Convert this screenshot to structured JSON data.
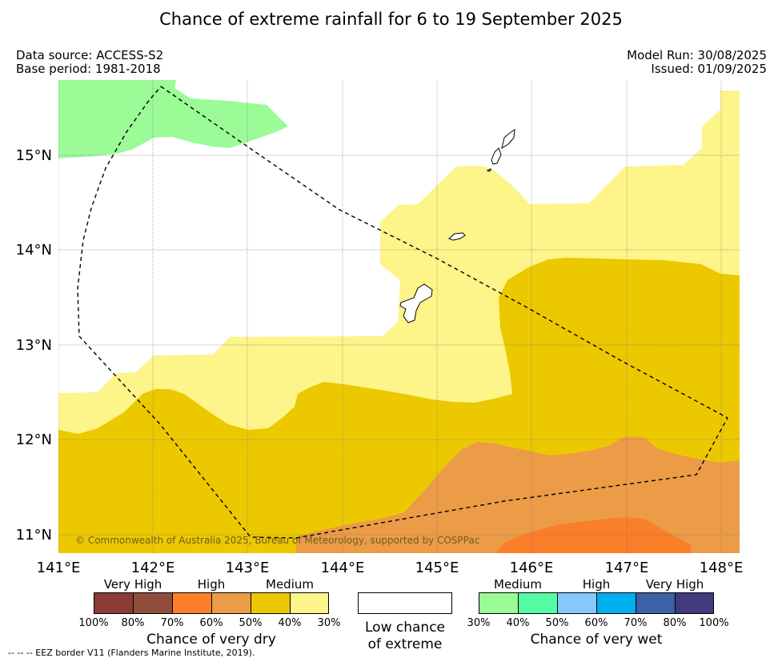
{
  "title": "Chance of extreme rainfall for 6 to 19 September 2025",
  "data_source": "Data source: ACCESS-S2",
  "base_period": "Base period: 1981-2018",
  "model_run": "Model Run: 30/08/2025",
  "issued": "Issued: 01/09/2025",
  "copyright": "© Commonwealth of Australia 2025, Bureau of Meteorology, supported by COSPPac",
  "lat_labels": [
    "15°N",
    "14°N",
    "13°N",
    "12°N",
    "11°N"
  ],
  "lon_labels": [
    "141°E",
    "142°E",
    "143°E",
    "144°E",
    "145°E",
    "146°E",
    "147°E",
    "148°E"
  ],
  "legend": {
    "dry": {
      "categories": [
        "Very High",
        "High",
        "Medium"
      ],
      "ticks": [
        "100%",
        "80%",
        "70%",
        "60%",
        "50%",
        "40%",
        "30%"
      ],
      "colors": [
        "#8b3a34",
        "#8f4e3c",
        "#fb7e28",
        "#ec9b47",
        "#ecc800",
        "#fdf48a"
      ],
      "caption": "Chance of very dry"
    },
    "none": {
      "caption_line1": "Low chance",
      "caption_line2": "of extreme",
      "color": "#ffffff"
    },
    "wet": {
      "categories": [
        "Medium",
        "High",
        "Very High"
      ],
      "ticks": [
        "30%",
        "40%",
        "50%",
        "60%",
        "70%",
        "80%",
        "100%"
      ],
      "colors": [
        "#9afb97",
        "#56fba6",
        "#86c9fd",
        "#00b0ee",
        "#3a62a4",
        "#403a7e"
      ],
      "caption": "Chance of very wet"
    }
  },
  "footer": "--  --  -- EEZ border V11 (Flanders Marine Institute, 2019).",
  "map_colors": {
    "very_dry_30_40": "#fdf48a",
    "very_dry_40_50": "#ecc800",
    "very_dry_50_60": "#ec9b47",
    "very_dry_60_70": "#fb7e28",
    "very_wet_30_40": "#9afb97"
  }
}
